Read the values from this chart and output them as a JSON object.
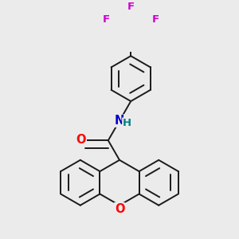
{
  "background_color": "#ebebeb",
  "bond_color": "#1a1a1a",
  "bond_width": 1.4,
  "colors": {
    "O": "#ff0000",
    "N": "#0000cc",
    "H": "#008080",
    "F": "#cc00cc"
  },
  "font_size": 9.5,
  "figsize": [
    3.0,
    3.0
  ],
  "dpi": 100
}
